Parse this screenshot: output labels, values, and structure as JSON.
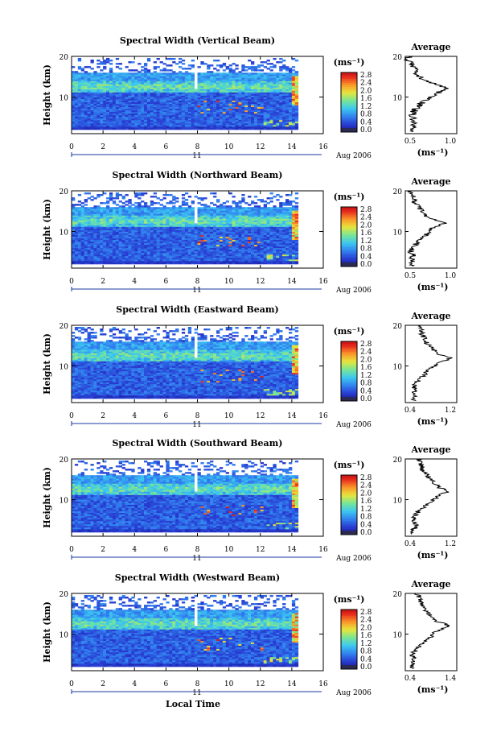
{
  "figure": {
    "x_axis_label": "Local Time",
    "date_label": "Aug 2006",
    "day_label": "11",
    "y_axis_label": "Height (km)",
    "colorbar_unit": "(ms⁻¹)",
    "average_title": "Average",
    "average_unit": "(ms⁻¹)"
  },
  "chart_data": [
    {
      "type": "heatmap",
      "title": "Spectral Width (Vertical Beam)",
      "xlabel": "Local Time",
      "ylabel": "Height (km)",
      "xlim": [
        0,
        16
      ],
      "ylim": [
        1,
        20
      ],
      "x_ticks": [
        "0",
        "2",
        "4",
        "6",
        "8",
        "10",
        "12",
        "14",
        "16"
      ],
      "y_ticks": [
        "10",
        "20"
      ],
      "colorbar_ticks": [
        "0.0",
        "0.4",
        "0.8",
        "1.2",
        "1.6",
        "2.0",
        "2.4",
        "2.8"
      ],
      "colorbar_range": [
        0,
        3.0
      ],
      "average_profile": {
        "xlim": [
          0.45,
          1.25
        ],
        "x_ticks": [
          "0.5",
          "1.0"
        ],
        "profile_points": [
          [
            0.55,
            2
          ],
          [
            0.6,
            4
          ],
          [
            0.55,
            5
          ],
          [
            0.6,
            7
          ],
          [
            0.75,
            9
          ],
          [
            0.95,
            11
          ],
          [
            1.1,
            12
          ],
          [
            0.95,
            13
          ],
          [
            0.8,
            14
          ],
          [
            0.65,
            15
          ],
          [
            0.6,
            17
          ],
          [
            0.5,
            19
          ],
          [
            0.5,
            20
          ]
        ]
      }
    },
    {
      "type": "heatmap",
      "title": "Spectral Width (Northward Beam)",
      "xlabel": "Local Time",
      "ylabel": "Height (km)",
      "xlim": [
        0,
        16
      ],
      "ylim": [
        1,
        20
      ],
      "x_ticks": [
        "0",
        "2",
        "4",
        "6",
        "8",
        "10",
        "12",
        "14",
        "16"
      ],
      "y_ticks": [
        "10",
        "20"
      ],
      "colorbar_ticks": [
        "0.0",
        "0.4",
        "0.8",
        "1.2",
        "1.6",
        "2.0",
        "2.4",
        "2.8"
      ],
      "colorbar_range": [
        0,
        3.0
      ],
      "average_profile": {
        "xlim": [
          0.4,
          1.35
        ],
        "x_ticks": [
          "0.5",
          "1.0"
        ],
        "profile_points": [
          [
            0.5,
            2
          ],
          [
            0.55,
            4
          ],
          [
            0.5,
            5
          ],
          [
            0.6,
            7
          ],
          [
            0.7,
            8
          ],
          [
            0.9,
            11
          ],
          [
            1.15,
            12
          ],
          [
            0.95,
            13
          ],
          [
            0.75,
            14
          ],
          [
            0.65,
            16
          ],
          [
            0.55,
            18
          ],
          [
            0.5,
            20
          ]
        ]
      }
    },
    {
      "type": "heatmap",
      "title": "Spectral Width (Eastward Beam)",
      "xlabel": "Local Time",
      "ylabel": "Height (km)",
      "xlim": [
        0,
        16
      ],
      "ylim": [
        1,
        20
      ],
      "x_ticks": [
        "0",
        "2",
        "4",
        "6",
        "8",
        "10",
        "12",
        "14",
        "16"
      ],
      "y_ticks": [
        "10",
        "20"
      ],
      "colorbar_ticks": [
        "0.0",
        "0.4",
        "0.8",
        "1.2",
        "1.6",
        "2.0",
        "2.4",
        "2.8"
      ],
      "colorbar_range": [
        0,
        3.0
      ],
      "average_profile": {
        "xlim": [
          0.35,
          1.35
        ],
        "x_ticks": [
          "0.4",
          "1.2"
        ],
        "profile_points": [
          [
            0.5,
            2
          ],
          [
            0.55,
            4
          ],
          [
            0.5,
            5
          ],
          [
            0.65,
            7
          ],
          [
            0.8,
            9
          ],
          [
            1.05,
            11
          ],
          [
            1.25,
            12
          ],
          [
            1.0,
            13
          ],
          [
            0.8,
            15
          ],
          [
            0.7,
            17
          ],
          [
            0.65,
            19
          ],
          [
            0.6,
            20
          ]
        ]
      }
    },
    {
      "type": "heatmap",
      "title": "Spectral Width (Southward Beam)",
      "xlabel": "Local Time",
      "ylabel": "Height (km)",
      "xlim": [
        0,
        16
      ],
      "ylim": [
        1,
        20
      ],
      "x_ticks": [
        "0",
        "2",
        "4",
        "6",
        "8",
        "10",
        "12",
        "14",
        "16"
      ],
      "y_ticks": [
        "10",
        "20"
      ],
      "colorbar_ticks": [
        "0.0",
        "0.4",
        "0.8",
        "1.2",
        "1.6",
        "2.0",
        "2.4",
        "2.8"
      ],
      "colorbar_range": [
        0,
        3.0
      ],
      "average_profile": {
        "xlim": [
          0.35,
          1.35
        ],
        "x_ticks": [
          "0.4",
          "1.2"
        ],
        "profile_points": [
          [
            0.5,
            2
          ],
          [
            0.55,
            4
          ],
          [
            0.5,
            5
          ],
          [
            0.6,
            7
          ],
          [
            0.8,
            9
          ],
          [
            1.0,
            11
          ],
          [
            1.2,
            12
          ],
          [
            1.0,
            13
          ],
          [
            0.85,
            15
          ],
          [
            0.7,
            17
          ],
          [
            0.65,
            19
          ],
          [
            0.6,
            20
          ]
        ]
      }
    },
    {
      "type": "heatmap",
      "title": "Spectral Width (Westward Beam)",
      "xlabel": "Local Time",
      "ylabel": "Height (km)",
      "xlim": [
        0,
        16
      ],
      "ylim": [
        1,
        20
      ],
      "x_ticks": [
        "0",
        "2",
        "4",
        "6",
        "8",
        "10",
        "12",
        "14",
        "16"
      ],
      "y_ticks": [
        "10",
        "20"
      ],
      "colorbar_ticks": [
        "0.0",
        "0.4",
        "0.8",
        "1.2",
        "1.6",
        "2.0",
        "2.4",
        "2.8"
      ],
      "colorbar_range": [
        0,
        3.0
      ],
      "average_profile": {
        "xlim": [
          0.35,
          1.45
        ],
        "x_ticks": [
          "0.4",
          "1.4"
        ],
        "profile_points": [
          [
            0.5,
            2
          ],
          [
            0.55,
            4
          ],
          [
            0.5,
            5
          ],
          [
            0.65,
            7
          ],
          [
            0.85,
            9
          ],
          [
            1.05,
            11
          ],
          [
            1.3,
            12
          ],
          [
            1.05,
            13
          ],
          [
            0.85,
            15
          ],
          [
            0.7,
            17
          ],
          [
            0.65,
            19
          ],
          [
            0.6,
            20
          ]
        ]
      }
    }
  ]
}
